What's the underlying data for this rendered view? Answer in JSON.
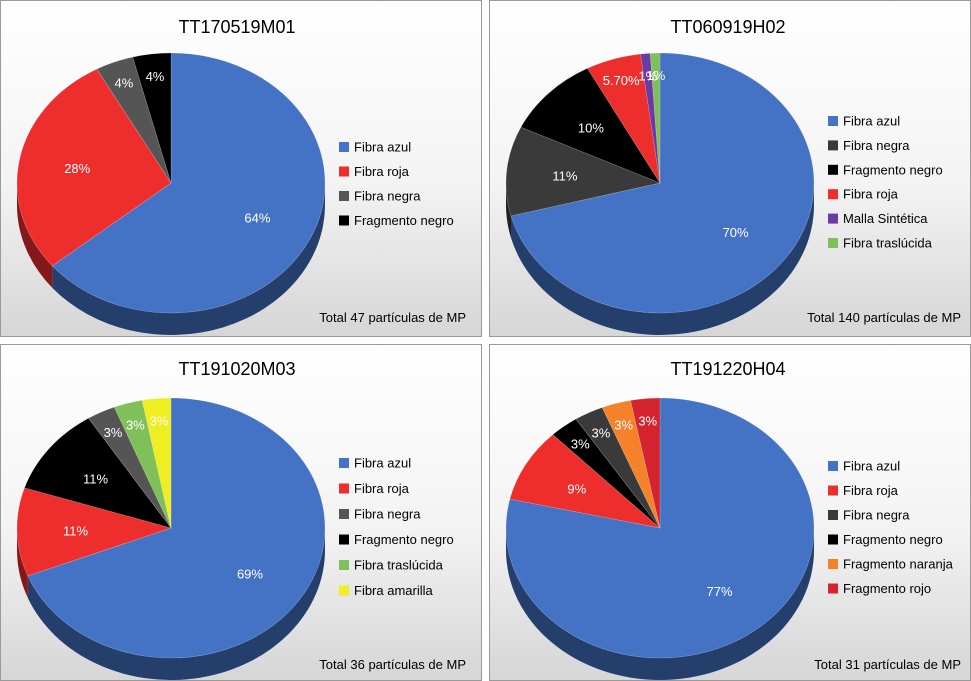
{
  "chart_data": [
    {
      "type": "pie",
      "title": "TT170519M01",
      "footer": "Total 47 partículas de MP",
      "slices": [
        {
          "name": "Fibra azul",
          "value": 64,
          "label": "64%",
          "color": "#4472c4"
        },
        {
          "name": "Fibra roja",
          "value": 28,
          "label": "28%",
          "color": "#ee2d2d"
        },
        {
          "name": "Fibra negra",
          "value": 4,
          "label": "4%",
          "color": "#555555"
        },
        {
          "name": "Fragmento negro",
          "value": 4,
          "label": "4%",
          "color": "#000000"
        }
      ]
    },
    {
      "type": "pie",
      "title": "TT060919H02",
      "footer": "Total 140 partículas de MP",
      "slices": [
        {
          "name": "Fibra azul",
          "value": 70,
          "label": "70%",
          "color": "#4472c4"
        },
        {
          "name": "Fibra negra",
          "value": 11,
          "label": "11%",
          "color": "#3a3a3a"
        },
        {
          "name": "Fragmento negro",
          "value": 10,
          "label": "10%",
          "color": "#000000"
        },
        {
          "name": "Fibra roja",
          "value": 5.7,
          "label": "5.70%",
          "color": "#ee2d2d"
        },
        {
          "name": "Malla Sintética",
          "value": 1,
          "label": "1%",
          "color": "#6a3aa5"
        },
        {
          "name": "Fibra traslúcida",
          "value": 1,
          "label": "1%",
          "color": "#80c05a"
        }
      ]
    },
    {
      "type": "pie",
      "title": "TT191020M03",
      "footer": "Total 36 partículas de MP",
      "slices": [
        {
          "name": "Fibra azul",
          "value": 69,
          "label": "69%",
          "color": "#4472c4"
        },
        {
          "name": "Fibra roja",
          "value": 11,
          "label": "11%",
          "color": "#ee2d2d"
        },
        {
          "name": "Fragmento negro",
          "value": 11,
          "label": "11%",
          "color": "#000000"
        },
        {
          "name": "Fibra negra",
          "value": 3,
          "label": "3%",
          "color": "#555555"
        },
        {
          "name": "Fibra traslúcida",
          "value": 3,
          "label": "3%",
          "color": "#80c05a"
        },
        {
          "name": "Fibra amarilla",
          "value": 3,
          "label": "3%",
          "color": "#eeee22"
        }
      ],
      "legend_order": [
        "Fibra azul",
        "Fibra roja",
        "Fibra negra",
        "Fragmento negro",
        "Fibra traslúcida",
        "Fibra amarilla"
      ]
    },
    {
      "type": "pie",
      "title": "TT191220H04",
      "footer": "Total 31 partículas de MP",
      "slices": [
        {
          "name": "Fibra azul",
          "value": 77,
          "label": "77%",
          "color": "#4472c4"
        },
        {
          "name": "Fibra roja",
          "value": 9,
          "label": "9%",
          "color": "#ee2d2d"
        },
        {
          "name": "Fragmento negro",
          "value": 3,
          "label": "3%",
          "color": "#000000"
        },
        {
          "name": "Fibra negra",
          "value": 3,
          "label": "3%",
          "color": "#3a3a3a"
        },
        {
          "name": "Fragmento naranja",
          "value": 3,
          "label": "3%",
          "color": "#f5822a"
        },
        {
          "name": "Fragmento rojo",
          "value": 3,
          "label": "3%",
          "color": "#d42430"
        }
      ],
      "legend_order": [
        "Fibra azul",
        "Fibra roja",
        "Fibra negra",
        "Fragmento negro",
        "Fragmento naranja",
        "Fragmento rojo"
      ]
    }
  ]
}
